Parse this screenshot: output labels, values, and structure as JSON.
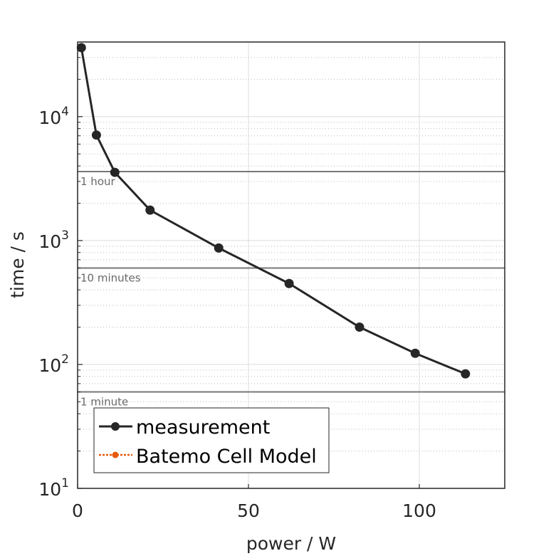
{
  "chart_data": {
    "type": "line",
    "title": "",
    "xlabel": "power / W",
    "ylabel": "time / s",
    "xlim": [
      0,
      125
    ],
    "ylim": [
      10,
      40000
    ],
    "yscale": "log",
    "grid": true,
    "x_ticks": [
      0,
      50,
      100
    ],
    "x_tick_labels": [
      "0",
      "50",
      "100"
    ],
    "y_ticks": [
      10,
      100,
      1000,
      10000
    ],
    "y_tick_labels": [
      {
        "base": "10",
        "exp": "1"
      },
      {
        "base": "10",
        "exp": "2"
      },
      {
        "base": "10",
        "exp": "3"
      },
      {
        "base": "10",
        "exp": "4"
      }
    ],
    "series": [
      {
        "name": "measurement",
        "color": "#262626",
        "style": "solid",
        "marker": "circle",
        "x": [
          1.1,
          5.5,
          10.9,
          21.2,
          41.3,
          61.9,
          82.5,
          98.8,
          113.5
        ],
        "y": [
          36000,
          7100,
          3550,
          1760,
          870,
          450,
          200,
          123,
          84
        ]
      },
      {
        "name": "Batemo Cell Model",
        "color": "#e8590c",
        "style": "dotted",
        "marker": "circle",
        "x": [],
        "y": []
      }
    ],
    "reference_lines": [
      {
        "value": 3600,
        "label": "1 hour"
      },
      {
        "value": 600,
        "label": "10 minutes"
      },
      {
        "value": 60,
        "label": "1 minute"
      }
    ],
    "legend_placement": "bottom-left"
  }
}
